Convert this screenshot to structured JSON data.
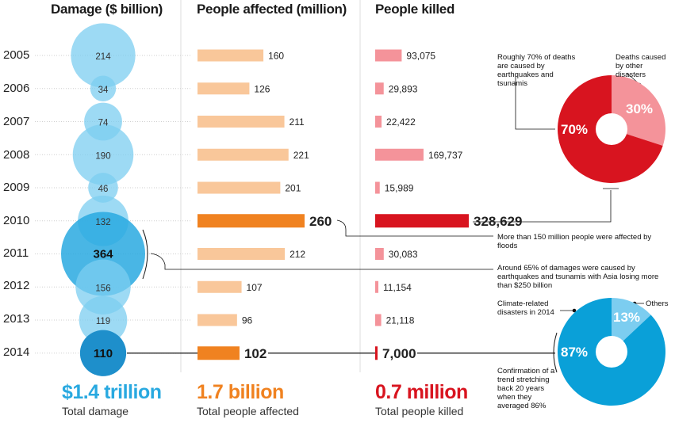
{
  "headers": {
    "damage": "Damage ($ billion)",
    "affected": "People affected (million)",
    "killed": "People killed"
  },
  "years": [
    "2005",
    "2006",
    "2007",
    "2008",
    "2009",
    "2010",
    "2011",
    "2012",
    "2013",
    "2014"
  ],
  "chart_data": [
    {
      "type": "bubble",
      "title": "Damage ($ billion)",
      "categories": [
        "2005",
        "2006",
        "2007",
        "2008",
        "2009",
        "2010",
        "2011",
        "2012",
        "2013",
        "2014"
      ],
      "values": [
        214,
        34,
        74,
        190,
        46,
        132,
        364,
        156,
        119,
        110
      ],
      "value_labels": [
        "214",
        "34",
        "74",
        "190",
        "46",
        "132",
        "364",
        "156",
        "119",
        "110"
      ],
      "highlight": [
        "2011",
        "2014"
      ],
      "colors": {
        "base": "#7ccdf0",
        "highlight_2011": "#29a9e0",
        "highlight_2014": "#1e8fcb"
      }
    },
    {
      "type": "bar",
      "title": "People affected (million)",
      "categories": [
        "2005",
        "2006",
        "2007",
        "2008",
        "2009",
        "2010",
        "2011",
        "2012",
        "2013",
        "2014"
      ],
      "values": [
        160,
        126,
        211,
        221,
        201,
        260,
        212,
        107,
        96,
        102
      ],
      "value_labels": [
        "160",
        "126",
        "211",
        "221",
        "201",
        "260",
        "212",
        "107",
        "96",
        "102"
      ],
      "highlight": [
        "2010",
        "2014"
      ],
      "colors": {
        "base": "#f9c79a",
        "highlight": "#f08220"
      }
    },
    {
      "type": "bar",
      "title": "People killed",
      "categories": [
        "2005",
        "2006",
        "2007",
        "2008",
        "2009",
        "2010",
        "2011",
        "2012",
        "2013",
        "2014"
      ],
      "values": [
        93075,
        29893,
        22422,
        169737,
        15989,
        328629,
        30083,
        11154,
        21118,
        7000
      ],
      "value_labels": [
        "93,075",
        "29,893",
        "22,422",
        "169,737",
        "15,989",
        "328,629",
        "30,083",
        "11,154",
        "21,118",
        "7,000"
      ],
      "highlight": [
        "2010",
        "2014"
      ],
      "colors": {
        "base": "#f4939a",
        "highlight": "#d8141f"
      }
    },
    {
      "type": "pie",
      "labels": [
        "Roughly 70% of deaths are caused by earthquakes and tsunamis",
        "Deaths caused by other disasters"
      ],
      "values": [
        70,
        30
      ],
      "value_labels": [
        "70%",
        "30%"
      ],
      "colors": [
        "#d8141f",
        "#f4939a"
      ]
    },
    {
      "type": "pie",
      "labels": [
        "Climate-related disasters in 2014",
        "Others"
      ],
      "values": [
        87,
        13
      ],
      "value_labels": [
        "87%",
        "13%"
      ],
      "colors": [
        "#0aa0d8",
        "#7ccdf0"
      ]
    }
  ],
  "totals": {
    "damage": {
      "value": "$1.4 trillion",
      "label": "Total damage",
      "color": "#29a9e0"
    },
    "affected": {
      "value": "1.7 billion",
      "label": "Total people affected",
      "color": "#f08220"
    },
    "killed": {
      "value": "0.7 million",
      "label": "Total people killed",
      "color": "#d8141f"
    }
  },
  "annotations": {
    "deaths_eq": "Roughly 70% of deaths are caused by earthquakes and tsunamis",
    "deaths_other": "Deaths caused by other disasters",
    "floods": "More than 150 million people were affected by floods",
    "damages_2011": "Around 65% of damages were caused by earthquakes and tsunamis with Asia losing more than $250 billion",
    "climate": "Climate-related disasters in 2014",
    "others": "Others",
    "trend": "Confirmation of a trend stretching back 20 years when they averaged 86%"
  }
}
